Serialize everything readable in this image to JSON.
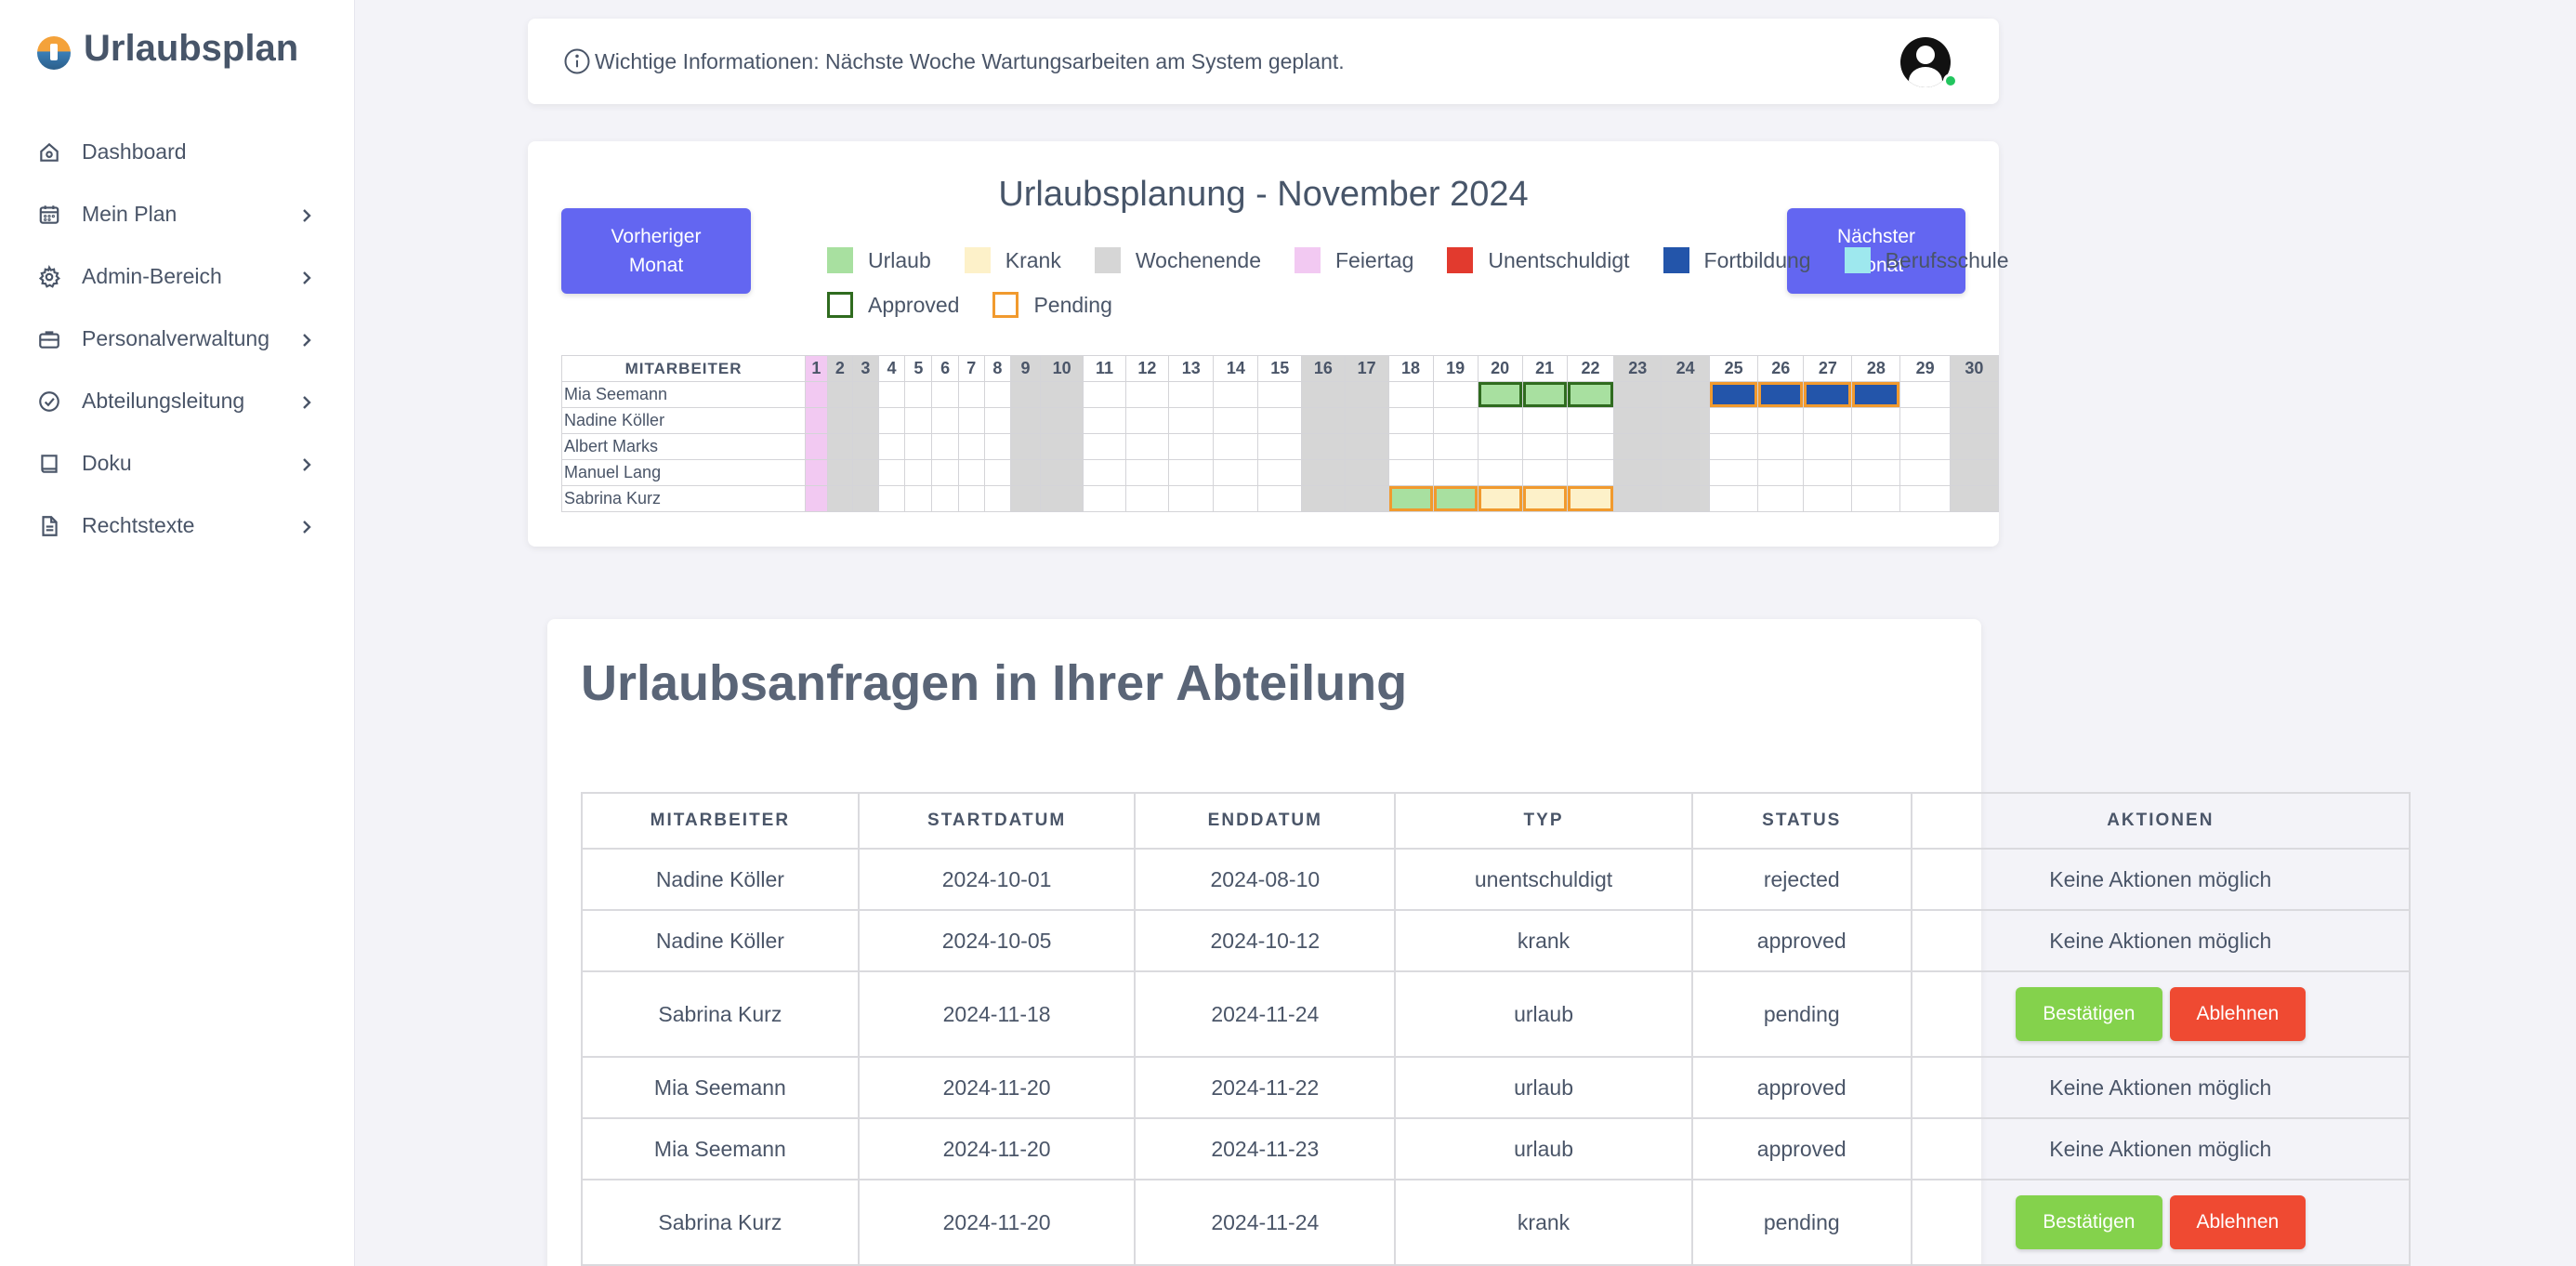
{
  "app": {
    "title": "Urlaubsplan"
  },
  "sidebar": {
    "items": [
      {
        "label": "Dashboard",
        "icon": "home-icon",
        "chevron": false
      },
      {
        "label": "Mein Plan",
        "icon": "calendar-icon",
        "chevron": true
      },
      {
        "label": "Admin-Bereich",
        "icon": "gear-icon",
        "chevron": true
      },
      {
        "label": "Personalverwaltung",
        "icon": "briefcase-icon",
        "chevron": true
      },
      {
        "label": "Abteilungsleitung",
        "icon": "check-circle-icon",
        "chevron": true
      },
      {
        "label": "Doku",
        "icon": "book-icon",
        "chevron": true
      },
      {
        "label": "Rechtstexte",
        "icon": "document-icon",
        "chevron": true
      }
    ]
  },
  "infobar": {
    "text": "Wichtige Informationen: Nächste Woche Wartungsarbeiten am System geplant."
  },
  "calendar": {
    "title": "Urlaubsplanung - November 2024",
    "prev_label": "Vorheriger Monat",
    "next_label": "Nächster Monat",
    "legend_row1": [
      {
        "label": "Urlaub",
        "color": "#a8e0a0"
      },
      {
        "label": "Krank",
        "color": "#fdf1c9"
      },
      {
        "label": "Wochenende",
        "color": "#d6d6d6"
      },
      {
        "label": "Feiertag",
        "color": "#f2c9f2"
      },
      {
        "label": "Unentschuldigt",
        "color": "#e23a2e"
      },
      {
        "label": "Fortbildung",
        "color": "#2355aa"
      },
      {
        "label": "Berufsschule",
        "color": "#9ee8ee"
      }
    ],
    "legend_row2": [
      {
        "label": "Approved",
        "border": "#2f6b1f"
      },
      {
        "label": "Pending",
        "border": "#f19a2e"
      }
    ],
    "column_header": "MITARBEITER",
    "days": [
      1,
      2,
      3,
      4,
      5,
      6,
      7,
      8,
      9,
      10,
      11,
      12,
      13,
      14,
      15,
      16,
      17,
      18,
      19,
      20,
      21,
      22,
      23,
      24,
      25,
      26,
      27,
      28,
      29,
      30
    ],
    "weekend_days": [
      2,
      3,
      9,
      10,
      16,
      17,
      23,
      24,
      30
    ],
    "holiday_days": [
      1
    ],
    "employees": [
      {
        "name": "Mia Seemann",
        "entries": [
          {
            "from": 20,
            "to": 22,
            "type": "urlaub",
            "status": "approved"
          },
          {
            "from": 25,
            "to": 28,
            "type": "fortbildung",
            "status": "pending"
          }
        ]
      },
      {
        "name": "Nadine Köller",
        "entries": []
      },
      {
        "name": "Albert Marks",
        "entries": []
      },
      {
        "name": "Manuel Lang",
        "entries": []
      },
      {
        "name": "Sabrina Kurz",
        "entries": [
          {
            "from": 18,
            "to": 19,
            "type": "urlaub",
            "status": "pending"
          },
          {
            "from": 20,
            "to": 22,
            "type": "krank",
            "status": "pending"
          }
        ]
      }
    ]
  },
  "requests": {
    "title": "Urlaubsanfragen in Ihrer Abteilung",
    "headers": [
      "MITARBEITER",
      "STARTDATUM",
      "ENDDATUM",
      "TYP",
      "STATUS",
      "AKTIONEN"
    ],
    "confirm_label": "Bestätigen",
    "reject_label": "Ablehnen",
    "no_action_label": "Keine Aktionen möglich",
    "rows": [
      {
        "name": "Nadine Köller",
        "start": "2024-10-01",
        "end": "2024-08-10",
        "type": "unentschuldigt",
        "status": "rejected",
        "actions": false
      },
      {
        "name": "Nadine Köller",
        "start": "2024-10-05",
        "end": "2024-10-12",
        "type": "krank",
        "status": "approved",
        "actions": false
      },
      {
        "name": "Sabrina Kurz",
        "start": "2024-11-18",
        "end": "2024-11-24",
        "type": "urlaub",
        "status": "pending",
        "actions": true
      },
      {
        "name": "Mia Seemann",
        "start": "2024-11-20",
        "end": "2024-11-22",
        "type": "urlaub",
        "status": "approved",
        "actions": false
      },
      {
        "name": "Mia Seemann",
        "start": "2024-11-20",
        "end": "2024-11-23",
        "type": "urlaub",
        "status": "approved",
        "actions": false
      },
      {
        "name": "Sabrina Kurz",
        "start": "2024-11-20",
        "end": "2024-11-24",
        "type": "krank",
        "status": "pending",
        "actions": true
      }
    ]
  },
  "colors": {
    "accent": "#6366f1",
    "urlaub": "#a8e0a0",
    "krank": "#fdf1c9",
    "weekend": "#d6d6d6",
    "holiday": "#f2c9f2",
    "fortbildung": "#2355aa",
    "approved_border": "#2f6b1f",
    "pending_border": "#f19a2e",
    "confirm": "#84d24c",
    "reject": "#ef4a32"
  }
}
